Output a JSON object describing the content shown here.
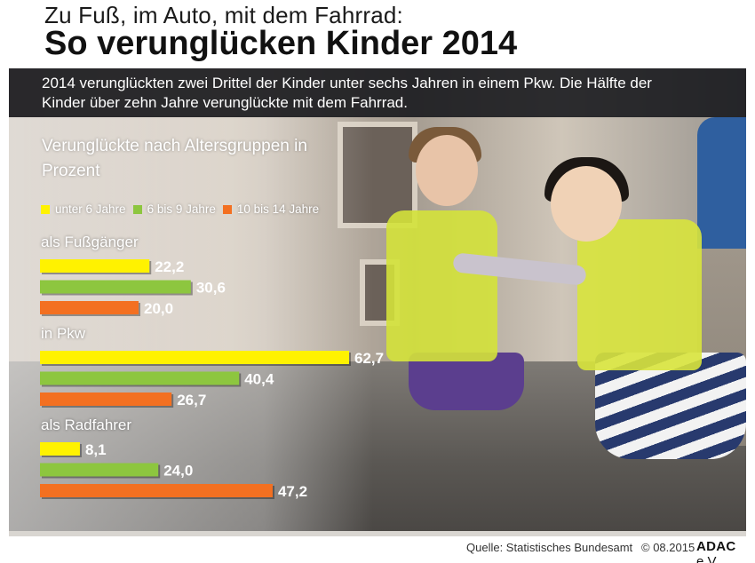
{
  "header": {
    "supertitle": "Zu Fuß, im Auto, mit dem Fahrrad:",
    "title": "So verunglücken Kinder 2014"
  },
  "intro": {
    "text": "2014 verunglückten zwei Drittel der Kinder unter sechs Jahren in einem Pkw. Die Hälfte der Kinder über zehn Jahre verunglückte mit dem Fahrrad."
  },
  "chart_data": {
    "type": "bar",
    "orientation": "horizontal",
    "title": "Verunglückte nach Altersgruppen in Prozent",
    "categories": [
      "als Fußgänger",
      "in Pkw",
      "als Radfahrer"
    ],
    "series": [
      {
        "name": "unter 6 Jahre",
        "color": "#fff200",
        "values": [
          22.2,
          62.7,
          8.1
        ],
        "labels": [
          "22,2",
          "62,7",
          "8,1"
        ]
      },
      {
        "name": "6 bis 9 Jahre",
        "color": "#8dc63f",
        "values": [
          30.6,
          40.4,
          24.0
        ],
        "labels": [
          "30,6",
          "40,4",
          "24,0"
        ]
      },
      {
        "name": "10 bis 14 Jahre",
        "color": "#f37021",
        "values": [
          20.0,
          26.7,
          47.2
        ],
        "labels": [
          "20,0",
          "26,7",
          "47,2"
        ]
      }
    ],
    "legend_position": "top-left",
    "grid": false
  },
  "footer": {
    "source": "Quelle:  Statistisches Bundesamt",
    "copyright": "© 08.2015",
    "brand": "ADAC",
    "brand_suffix": " e.V."
  }
}
